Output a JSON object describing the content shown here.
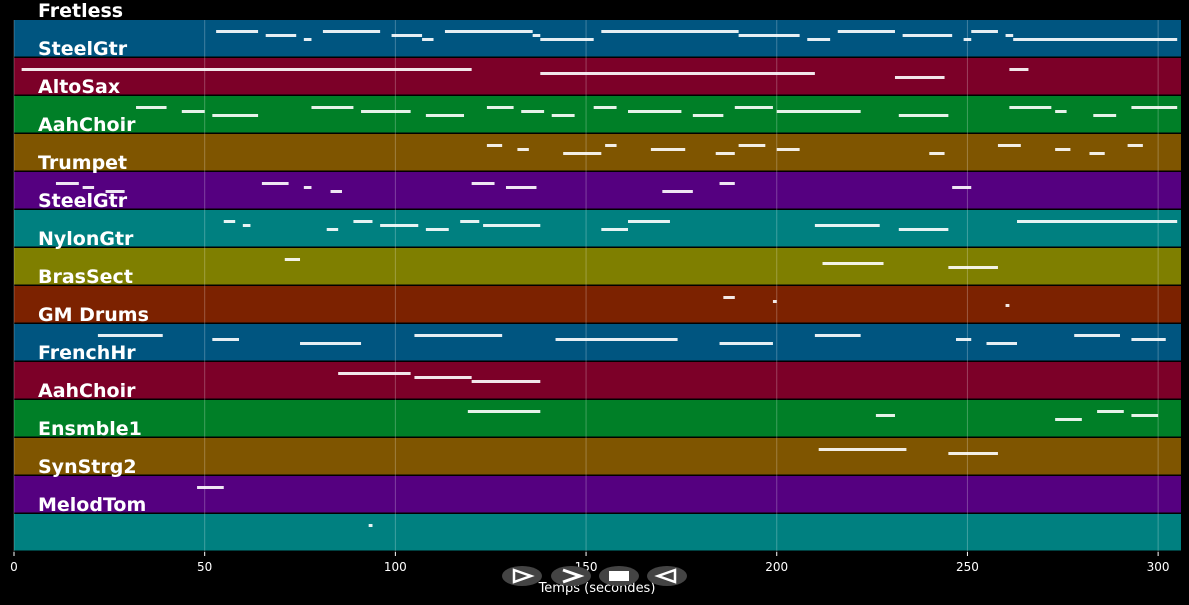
{
  "chart_data": {
    "type": "piano-roll",
    "xlabel": "Temps (secondes)",
    "xlim": [
      0,
      306
    ],
    "xticks": [
      0,
      50,
      100,
      150,
      200,
      250,
      300
    ],
    "grid": true,
    "tracks": [
      {
        "name": "Fretless",
        "color": "#005580",
        "notes": [
          [
            53,
            64
          ],
          [
            66,
            74
          ],
          [
            76,
            78
          ],
          [
            81,
            96
          ],
          [
            99,
            107
          ],
          [
            107,
            110
          ],
          [
            113,
            136
          ],
          [
            136,
            138
          ],
          [
            138,
            152
          ],
          [
            154,
            190
          ],
          [
            190,
            206
          ],
          [
            208,
            214
          ],
          [
            216,
            231
          ],
          [
            233,
            246
          ],
          [
            249,
            251
          ],
          [
            251,
            258
          ],
          [
            260,
            262
          ],
          [
            262,
            305
          ]
        ]
      },
      {
        "name": "SteelGtr",
        "color": "#7c0028",
        "notes": [
          [
            2,
            120
          ],
          [
            138,
            210
          ],
          [
            231,
            244
          ],
          [
            261,
            266
          ]
        ]
      },
      {
        "name": "AltoSax",
        "color": "#007f27",
        "notes": [
          [
            32,
            40
          ],
          [
            44,
            50
          ],
          [
            52,
            64
          ],
          [
            78,
            89
          ],
          [
            91,
            104
          ],
          [
            108,
            118
          ],
          [
            124,
            131
          ],
          [
            133,
            139
          ],
          [
            141,
            147
          ],
          [
            152,
            158
          ],
          [
            161,
            175
          ],
          [
            178,
            186
          ],
          [
            189,
            199
          ],
          [
            200,
            222
          ],
          [
            232,
            245
          ],
          [
            261,
            272
          ],
          [
            273,
            276
          ],
          [
            283,
            289
          ],
          [
            293,
            305
          ]
        ]
      },
      {
        "name": "AahChoir",
        "color": "#7f5500",
        "notes": [
          [
            124,
            128
          ],
          [
            132,
            135
          ],
          [
            144,
            154
          ],
          [
            155,
            158
          ],
          [
            167,
            176
          ],
          [
            184,
            189
          ],
          [
            190,
            197
          ],
          [
            200,
            206
          ],
          [
            240,
            244
          ],
          [
            258,
            264
          ],
          [
            273,
            277
          ],
          [
            282,
            286
          ],
          [
            292,
            296
          ]
        ]
      },
      {
        "name": "Trumpet",
        "color": "#550080",
        "notes": [
          [
            11,
            17
          ],
          [
            18,
            21
          ],
          [
            24,
            29
          ],
          [
            65,
            72
          ],
          [
            76,
            78
          ],
          [
            83,
            86
          ],
          [
            120,
            126
          ],
          [
            129,
            137
          ],
          [
            170,
            178
          ],
          [
            185,
            189
          ],
          [
            246,
            251
          ]
        ]
      },
      {
        "name": "SteelGtr",
        "color": "#008080",
        "notes": [
          [
            55,
            58
          ],
          [
            60,
            62
          ],
          [
            82,
            85
          ],
          [
            89,
            94
          ],
          [
            96,
            106
          ],
          [
            108,
            114
          ],
          [
            117,
            122
          ],
          [
            123,
            138
          ],
          [
            154,
            161
          ],
          [
            161,
            172
          ],
          [
            210,
            227
          ],
          [
            232,
            245
          ],
          [
            263,
            305
          ]
        ]
      },
      {
        "name": "NylonGtr",
        "color": "#7f7f00",
        "notes": [
          [
            71,
            75
          ],
          [
            212,
            228
          ],
          [
            245,
            258
          ]
        ]
      },
      {
        "name": "BrasSect",
        "color": "#7c2200",
        "notes": [
          [
            186,
            189
          ],
          [
            199,
            200
          ],
          [
            260,
            261
          ]
        ]
      },
      {
        "name": "GM Drums",
        "color": "#005580",
        "notes": [
          [
            22,
            39
          ],
          [
            52,
            59
          ],
          [
            75,
            91
          ],
          [
            105,
            128
          ],
          [
            142,
            174
          ],
          [
            185,
            199
          ],
          [
            210,
            222
          ],
          [
            247,
            251
          ],
          [
            255,
            263
          ],
          [
            278,
            290
          ],
          [
            293,
            302
          ]
        ]
      },
      {
        "name": "FrenchHr",
        "color": "#7c0028",
        "notes": [
          [
            85,
            104
          ],
          [
            105,
            120
          ],
          [
            120,
            138
          ]
        ]
      },
      {
        "name": "AahChoir",
        "color": "#007f27",
        "notes": [
          [
            119,
            138
          ],
          [
            226,
            231
          ],
          [
            273,
            280
          ],
          [
            284,
            291
          ],
          [
            293,
            300
          ]
        ]
      },
      {
        "name": "Ensmble1",
        "color": "#7f5500",
        "notes": [
          [
            211,
            234
          ],
          [
            245,
            258
          ]
        ]
      },
      {
        "name": "SynStrg2",
        "color": "#550080",
        "notes": [
          [
            48,
            55
          ]
        ]
      },
      {
        "name": "MelodTom",
        "color": "#008080",
        "notes": [
          [
            93,
            94
          ]
        ]
      }
    ]
  },
  "controls": [
    {
      "name": "play-button",
      "icon": "play-icon"
    },
    {
      "name": "forward-button",
      "icon": "forward-icon"
    },
    {
      "name": "stop-button",
      "icon": "stop-icon"
    },
    {
      "name": "rewind-button",
      "icon": "rewind-icon"
    }
  ]
}
